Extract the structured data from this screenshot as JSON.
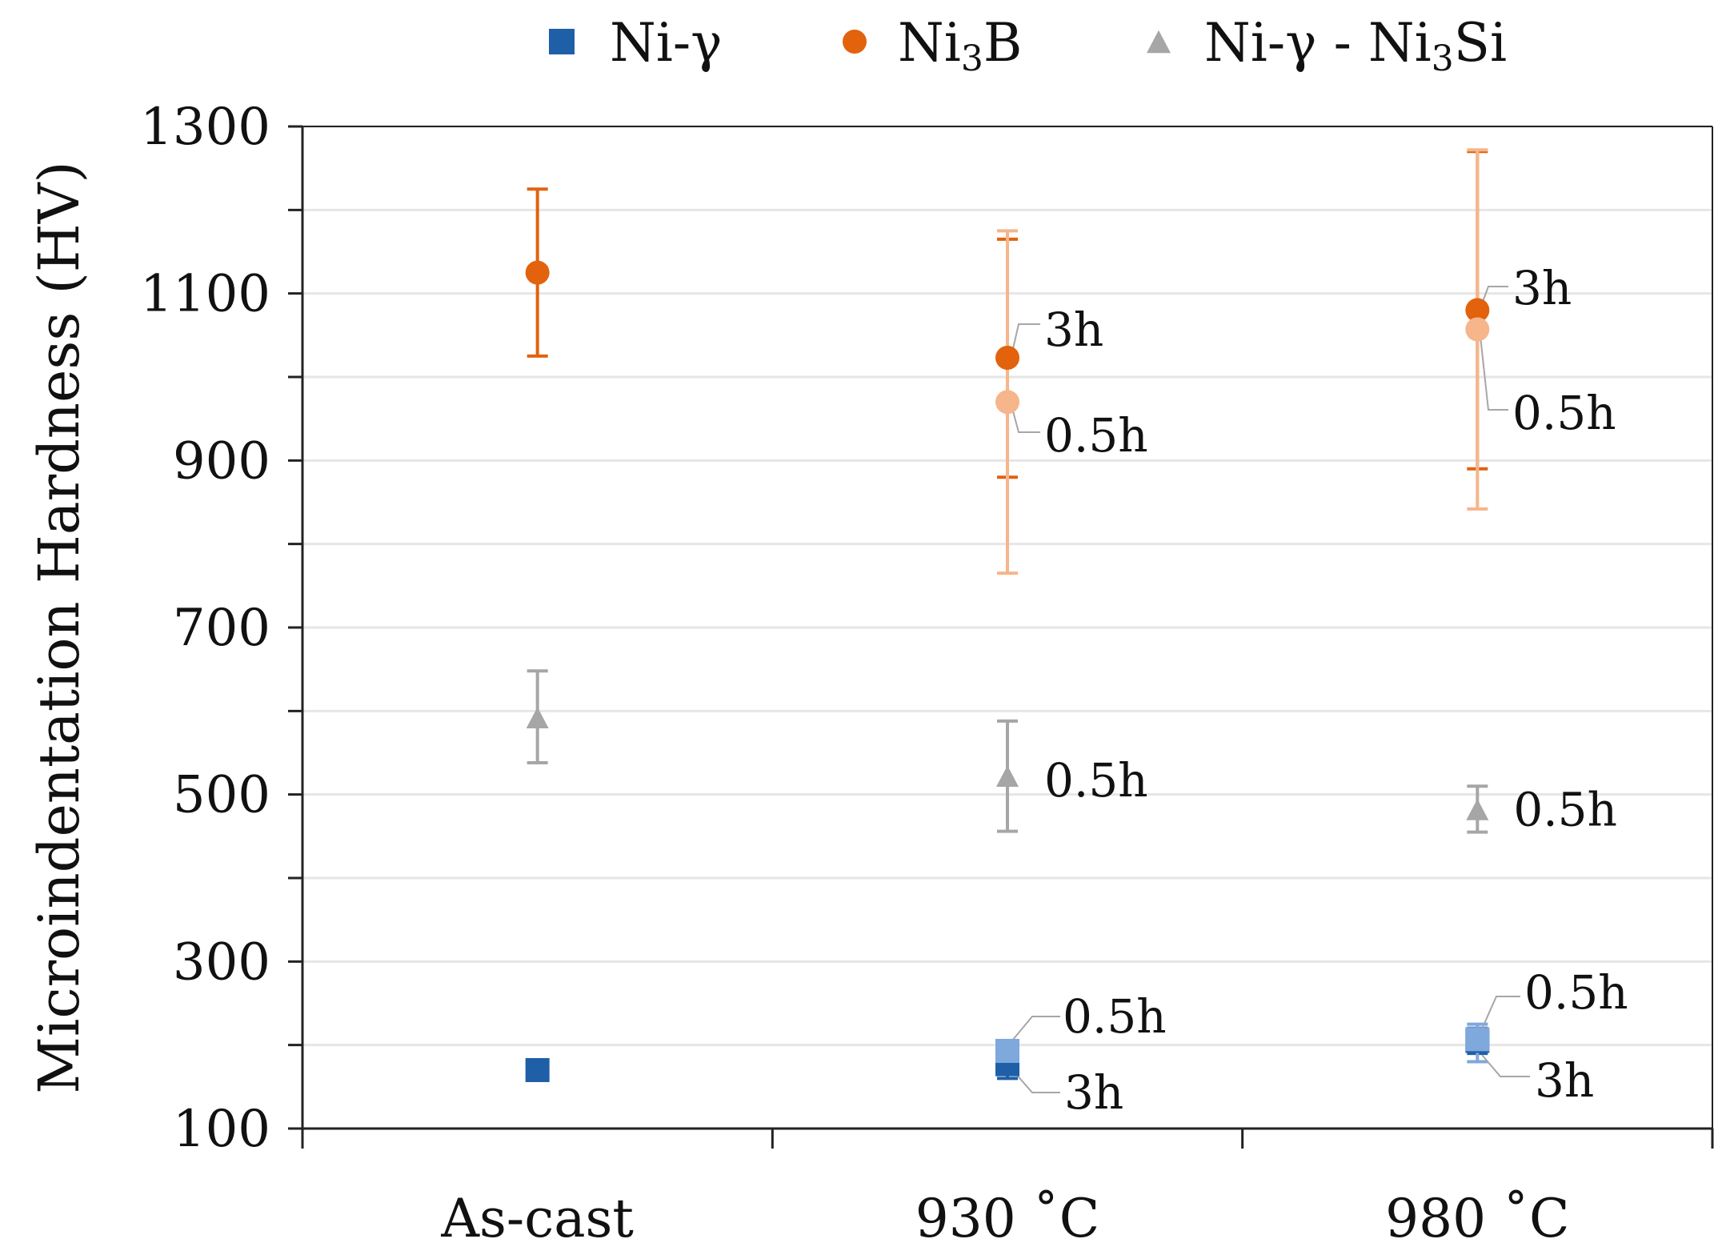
{
  "chart_data": {
    "type": "scatter",
    "title": "",
    "xlabel": "",
    "ylabel": "Microindentation Hardness (HV)",
    "ylim": [
      100,
      1300
    ],
    "yticks": [
      100,
      300,
      500,
      700,
      900,
      1100,
      1300
    ],
    "minor_gridlines_every": 100,
    "categories": [
      "As-cast",
      "930 ˚C",
      "980 ˚C"
    ],
    "legend": {
      "position": "top",
      "items": [
        {
          "key": "ni_gamma",
          "label_main": "Ni-γ",
          "label_parts": [
            "Ni-γ"
          ],
          "marker": "square",
          "color": "#1f5fa8"
        },
        {
          "key": "ni3b",
          "label_main": "Ni3B",
          "label_parts": [
            "Ni",
            "3",
            "B"
          ],
          "marker": "circle",
          "color": "#e2620e"
        },
        {
          "key": "eutectic",
          "label_main": "Ni-γ - Ni3Si",
          "label_parts": [
            "Ni-γ - Ni",
            "3",
            "Si"
          ],
          "marker": "triangle",
          "color": "#a6a6a6"
        }
      ]
    },
    "series": [
      {
        "name": "Ni-γ (as-cast)",
        "marker": "square",
        "color": "#1f5fa8",
        "category": "As-cast",
        "value": 170,
        "err_low": null,
        "err_high": null,
        "label": ""
      },
      {
        "name": "Ni-γ 3h",
        "marker": "square",
        "color": "#1f5fa8",
        "category": "930 ˚C",
        "value": 177,
        "err_low": 160,
        "err_high": 190,
        "label": "3h"
      },
      {
        "name": "Ni-γ 0.5h",
        "marker": "square",
        "color": "#7fa8dc",
        "category": "930 ˚C",
        "value": 193,
        "err_low": 180,
        "err_high": 205,
        "label": "0.5h"
      },
      {
        "name": "Ni-γ 3h",
        "marker": "square",
        "color": "#1f5fa8",
        "category": "980 ˚C",
        "value": 205,
        "err_low": 190,
        "err_high": 220,
        "label": "3h"
      },
      {
        "name": "Ni-γ 0.5h",
        "marker": "square",
        "color": "#7fa8dc",
        "category": "980 ˚C",
        "value": 207,
        "err_low": 180,
        "err_high": 225,
        "label": "0.5h"
      },
      {
        "name": "Ni3B (as-cast)",
        "marker": "circle",
        "color": "#e2620e",
        "category": "As-cast",
        "value": 1125,
        "err_low": 1025,
        "err_high": 1225,
        "label": ""
      },
      {
        "name": "Ni3B 3h",
        "marker": "circle",
        "color": "#e2620e",
        "category": "930 ˚C",
        "value": 1023,
        "err_low": 880,
        "err_high": 1165,
        "label": "3h"
      },
      {
        "name": "Ni3B 0.5h",
        "marker": "circle",
        "color": "#f6b58b",
        "category": "930 ˚C",
        "value": 970,
        "err_low": 765,
        "err_high": 1175,
        "label": "0.5h"
      },
      {
        "name": "Ni3B 3h",
        "marker": "circle",
        "color": "#e2620e",
        "category": "980 ˚C",
        "value": 1080,
        "err_low": 890,
        "err_high": 1270,
        "label": "3h"
      },
      {
        "name": "Ni3B 0.5h",
        "marker": "circle",
        "color": "#f6b58b",
        "category": "980 ˚C",
        "value": 1057,
        "err_low": 842,
        "err_high": 1272,
        "label": "0.5h"
      },
      {
        "name": "Ni-γ - Ni3Si (as-cast)",
        "marker": "triangle",
        "color": "#a6a6a6",
        "category": "As-cast",
        "value": 592,
        "err_low": 538,
        "err_high": 648,
        "label": ""
      },
      {
        "name": "Ni-γ - Ni3Si 0.5h",
        "marker": "triangle",
        "color": "#a6a6a6",
        "category": "930 ˚C",
        "value": 522,
        "err_low": 456,
        "err_high": 588,
        "label": "0.5h"
      },
      {
        "name": "Ni-γ - Ni3Si 0.5h",
        "marker": "triangle",
        "color": "#a6a6a6",
        "category": "980 ˚C",
        "value": 482,
        "err_low": 455,
        "err_high": 510,
        "label": "0.5h"
      }
    ]
  }
}
